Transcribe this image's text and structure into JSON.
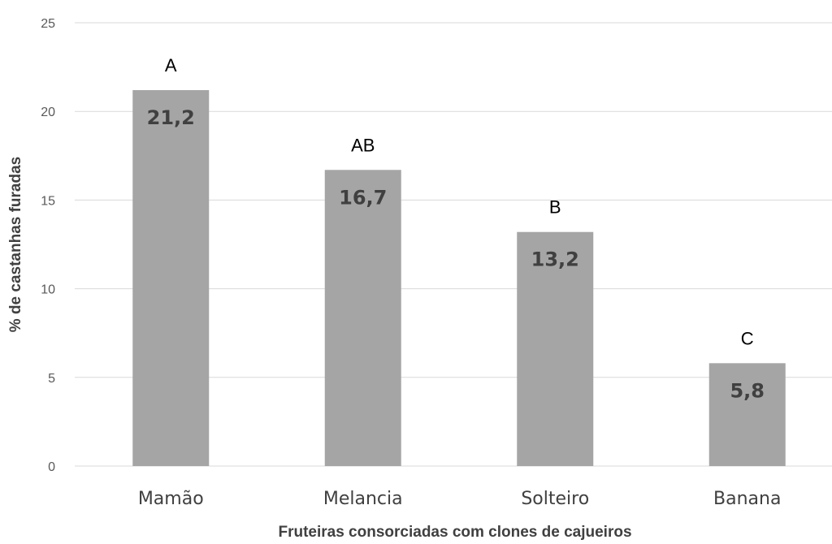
{
  "chart_data": {
    "type": "bar",
    "title": "",
    "xlabel": "Fruteiras consorciadas com clones de cajueiros",
    "ylabel": "% de castanhas furadas",
    "ylim": [
      0,
      25
    ],
    "yticks": [
      "0",
      "5",
      "10",
      "15",
      "20",
      "25"
    ],
    "ytick_values": [
      0,
      5,
      10,
      15,
      20,
      25
    ],
    "grid": true,
    "legend": "none",
    "categories": [
      "Mamão",
      "Melancia",
      "Solteiro",
      "Banana"
    ],
    "values": [
      21.2,
      16.7,
      13.2,
      5.8
    ],
    "value_labels": [
      "21,2",
      "16,7",
      "13,2",
      "5,8"
    ],
    "significance_letters": [
      "A",
      "AB",
      "B",
      "C"
    ],
    "bar_color": "#a5a5a5"
  }
}
